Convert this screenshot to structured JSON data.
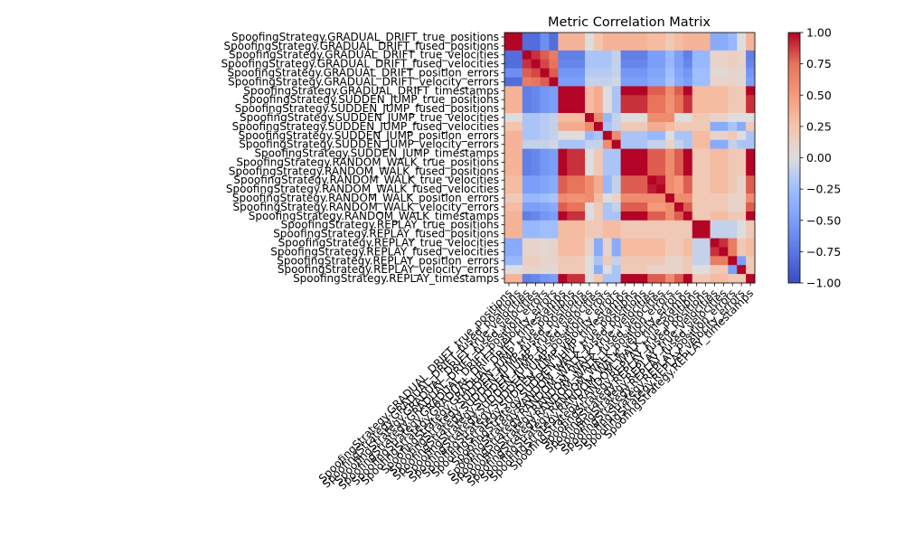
{
  "chart_data": {
    "type": "heatmap",
    "title": "Metric Correlation Matrix",
    "labels": [
      "SpoofingStrategy.GRADUAL_DRIFT_true_positions",
      "SpoofingStrategy.GRADUAL_DRIFT_fused_positions",
      "SpoofingStrategy.GRADUAL_DRIFT_true_velocities",
      "SpoofingStrategy.GRADUAL_DRIFT_fused_velocities",
      "SpoofingStrategy.GRADUAL_DRIFT_position_errors",
      "SpoofingStrategy.GRADUAL_DRIFT_velocity_errors",
      "SpoofingStrategy.GRADUAL_DRIFT_timestamps",
      "SpoofingStrategy.SUDDEN_JUMP_true_positions",
      "SpoofingStrategy.SUDDEN_JUMP_fused_positions",
      "SpoofingStrategy.SUDDEN_JUMP_true_velocities",
      "SpoofingStrategy.SUDDEN_JUMP_fused_velocities",
      "SpoofingStrategy.SUDDEN_JUMP_position_errors",
      "SpoofingStrategy.SUDDEN_JUMP_velocity_errors",
      "SpoofingStrategy.SUDDEN_JUMP_timestamps",
      "SpoofingStrategy.RANDOM_WALK_true_positions",
      "SpoofingStrategy.RANDOM_WALK_fused_positions",
      "SpoofingStrategy.RANDOM_WALK_true_velocities",
      "SpoofingStrategy.RANDOM_WALK_fused_velocities",
      "SpoofingStrategy.RANDOM_WALK_position_errors",
      "SpoofingStrategy.RANDOM_WALK_velocity_errors",
      "SpoofingStrategy.RANDOM_WALK_timestamps",
      "SpoofingStrategy.REPLAY_true_positions",
      "SpoofingStrategy.REPLAY_fused_positions",
      "SpoofingStrategy.REPLAY_true_velocities",
      "SpoofingStrategy.REPLAY_fused_velocities",
      "SpoofingStrategy.REPLAY_position_errors",
      "SpoofingStrategy.REPLAY_velocity_errors",
      "SpoofingStrategy.REPLAY_timestamps"
    ],
    "matrix": [
      [
        1.0,
        1.0,
        -0.8,
        -0.8,
        -0.6,
        -0.8,
        0.35,
        0.35,
        0.35,
        0.0,
        0.25,
        0.35,
        0.35,
        0.35,
        0.35,
        0.35,
        0.3,
        0.3,
        0.2,
        0.3,
        0.35,
        0.35,
        0.35,
        -0.4,
        -0.4,
        -0.3,
        0.0,
        0.35
      ],
      [
        1.0,
        1.0,
        -0.8,
        -0.8,
        -0.6,
        -0.8,
        0.35,
        0.35,
        0.35,
        0.0,
        0.25,
        0.35,
        0.35,
        0.35,
        0.35,
        0.35,
        0.3,
        0.3,
        0.2,
        0.3,
        0.35,
        0.35,
        0.35,
        -0.4,
        -0.4,
        -0.3,
        0.0,
        0.35
      ],
      [
        -0.8,
        -0.8,
        1.0,
        0.9,
        0.8,
        0.7,
        -0.7,
        -0.7,
        -0.7,
        -0.2,
        -0.2,
        -0.2,
        -0.1,
        -0.7,
        -0.7,
        -0.7,
        -0.5,
        -0.5,
        -0.3,
        -0.5,
        -0.7,
        -0.3,
        -0.3,
        0.1,
        0.1,
        0.15,
        0.1,
        -0.7
      ],
      [
        -0.8,
        -0.8,
        0.9,
        1.0,
        0.85,
        0.75,
        -0.65,
        -0.65,
        -0.65,
        -0.2,
        -0.2,
        -0.2,
        -0.1,
        -0.65,
        -0.65,
        -0.65,
        -0.5,
        -0.5,
        -0.3,
        -0.5,
        -0.65,
        -0.3,
        -0.3,
        0.1,
        0.1,
        0.15,
        0.1,
        -0.65
      ],
      [
        -0.6,
        -0.6,
        0.8,
        0.85,
        1.0,
        0.8,
        -0.55,
        -0.55,
        -0.55,
        -0.15,
        -0.15,
        -0.15,
        -0.1,
        -0.55,
        -0.55,
        -0.55,
        -0.45,
        -0.45,
        -0.25,
        -0.45,
        -0.55,
        -0.25,
        -0.25,
        0.05,
        0.05,
        0.1,
        0.05,
        -0.55
      ],
      [
        -0.8,
        -0.8,
        0.7,
        0.75,
        0.8,
        1.0,
        -0.5,
        -0.5,
        -0.5,
        -0.1,
        -0.1,
        -0.1,
        -0.05,
        -0.5,
        -0.5,
        -0.5,
        -0.4,
        -0.4,
        -0.2,
        -0.4,
        -0.5,
        -0.25,
        -0.25,
        0.1,
        0.1,
        0.1,
        0.05,
        -0.5
      ],
      [
        0.35,
        0.35,
        -0.7,
        -0.65,
        -0.55,
        -0.5,
        1.0,
        1.0,
        1.0,
        0.3,
        0.4,
        0.0,
        -0.2,
        1.0,
        1.0,
        1.0,
        0.8,
        0.8,
        0.6,
        0.8,
        1.0,
        0.3,
        0.3,
        0.3,
        0.3,
        0.2,
        0.2,
        1.0
      ],
      [
        0.35,
        0.35,
        -0.7,
        -0.65,
        -0.55,
        -0.5,
        1.0,
        1.0,
        1.0,
        0.3,
        0.4,
        0.0,
        -0.2,
        0.9,
        0.9,
        0.9,
        0.75,
        0.75,
        0.55,
        0.75,
        0.9,
        0.3,
        0.3,
        0.3,
        0.3,
        0.2,
        0.2,
        0.9
      ],
      [
        0.35,
        0.35,
        -0.7,
        -0.65,
        -0.55,
        -0.5,
        1.0,
        1.0,
        1.0,
        0.3,
        0.4,
        0.0,
        -0.2,
        0.9,
        0.9,
        0.9,
        0.75,
        0.75,
        0.55,
        0.75,
        0.9,
        0.3,
        0.3,
        0.3,
        0.3,
        0.2,
        0.2,
        0.9
      ],
      [
        0.0,
        0.0,
        -0.2,
        -0.2,
        -0.15,
        -0.1,
        0.3,
        0.3,
        0.3,
        1.0,
        0.6,
        -0.3,
        -0.1,
        0.0,
        0.0,
        0.0,
        0.6,
        0.6,
        0.6,
        0.0,
        0.0,
        0.2,
        0.2,
        0.1,
        0.1,
        0.0,
        0.0,
        0.0
      ],
      [
        0.25,
        0.25,
        -0.2,
        -0.2,
        -0.15,
        -0.1,
        0.4,
        0.4,
        0.4,
        0.6,
        1.0,
        -0.2,
        -0.1,
        0.2,
        0.2,
        0.2,
        0.4,
        0.4,
        0.3,
        0.2,
        0.2,
        0.2,
        0.2,
        -0.4,
        -0.4,
        -0.2,
        -0.4,
        0.2
      ],
      [
        0.35,
        0.35,
        -0.2,
        -0.2,
        -0.15,
        -0.1,
        0.0,
        0.0,
        0.0,
        -0.3,
        -0.2,
        1.0,
        0.6,
        -0.2,
        -0.2,
        -0.2,
        -0.3,
        -0.3,
        0.0,
        -0.2,
        -0.2,
        0.3,
        0.3,
        0.1,
        0.1,
        0.2,
        0.0,
        -0.2
      ],
      [
        0.35,
        0.35,
        -0.1,
        -0.1,
        -0.1,
        -0.05,
        -0.2,
        -0.2,
        -0.2,
        -0.1,
        -0.1,
        0.6,
        1.0,
        -0.2,
        -0.2,
        -0.2,
        -0.1,
        -0.1,
        0.1,
        -0.1,
        -0.2,
        0.3,
        0.3,
        -0.4,
        -0.4,
        -0.1,
        -0.2,
        -0.2
      ],
      [
        0.35,
        0.35,
        -0.7,
        -0.65,
        -0.55,
        -0.5,
        1.0,
        0.9,
        0.9,
        0.0,
        0.2,
        -0.2,
        -0.2,
        1.0,
        1.0,
        1.0,
        0.8,
        0.8,
        0.6,
        0.8,
        1.0,
        0.2,
        0.2,
        0.3,
        0.3,
        0.2,
        0.2,
        1.0
      ],
      [
        0.35,
        0.35,
        -0.7,
        -0.65,
        -0.55,
        -0.5,
        1.0,
        0.9,
        0.9,
        0.0,
        0.2,
        -0.2,
        -0.2,
        1.0,
        1.0,
        1.0,
        0.8,
        0.8,
        0.6,
        0.8,
        1.0,
        0.2,
        0.2,
        0.3,
        0.3,
        0.2,
        0.2,
        1.0
      ],
      [
        0.35,
        0.35,
        -0.7,
        -0.65,
        -0.55,
        -0.5,
        1.0,
        0.9,
        0.9,
        0.0,
        0.2,
        -0.2,
        -0.2,
        1.0,
        1.0,
        1.0,
        0.8,
        0.8,
        0.6,
        0.8,
        1.0,
        0.2,
        0.2,
        0.3,
        0.3,
        0.2,
        0.2,
        1.0
      ],
      [
        0.3,
        0.3,
        -0.5,
        -0.5,
        -0.45,
        -0.4,
        0.8,
        0.75,
        0.75,
        0.6,
        0.4,
        -0.3,
        -0.1,
        0.8,
        0.8,
        0.8,
        1.0,
        0.95,
        0.6,
        0.5,
        0.8,
        0.2,
        0.2,
        0.3,
        0.3,
        0.2,
        0.1,
        0.8
      ],
      [
        0.3,
        0.3,
        -0.5,
        -0.5,
        -0.45,
        -0.4,
        0.8,
        0.75,
        0.75,
        0.6,
        0.4,
        -0.3,
        -0.1,
        0.8,
        0.8,
        0.8,
        0.95,
        1.0,
        0.6,
        0.5,
        0.8,
        0.2,
        0.2,
        0.3,
        0.3,
        0.2,
        0.1,
        0.8
      ],
      [
        0.2,
        0.2,
        -0.3,
        -0.3,
        -0.25,
        -0.2,
        0.6,
        0.55,
        0.55,
        0.6,
        0.3,
        0.0,
        0.1,
        0.6,
        0.6,
        0.6,
        0.6,
        0.6,
        1.0,
        0.6,
        0.6,
        0.2,
        0.2,
        0.2,
        0.2,
        0.1,
        0.1,
        0.6
      ],
      [
        0.3,
        0.3,
        -0.5,
        -0.5,
        -0.45,
        -0.4,
        0.8,
        0.75,
        0.75,
        0.0,
        0.2,
        -0.2,
        -0.1,
        0.8,
        0.8,
        0.8,
        0.5,
        0.5,
        0.6,
        1.0,
        0.8,
        0.2,
        0.2,
        0.2,
        0.2,
        0.1,
        0.1,
        0.8
      ],
      [
        0.35,
        0.35,
        -0.7,
        -0.65,
        -0.55,
        -0.5,
        1.0,
        0.9,
        0.9,
        0.0,
        0.2,
        -0.2,
        -0.2,
        1.0,
        1.0,
        1.0,
        0.8,
        0.8,
        0.6,
        0.8,
        1.0,
        0.2,
        0.2,
        0.3,
        0.3,
        0.2,
        0.2,
        1.0
      ],
      [
        0.35,
        0.35,
        -0.3,
        -0.3,
        -0.25,
        -0.25,
        0.3,
        0.3,
        0.3,
        0.2,
        0.2,
        0.3,
        0.3,
        0.2,
        0.2,
        0.2,
        0.2,
        0.2,
        0.2,
        0.2,
        0.2,
        1.0,
        1.0,
        -0.1,
        -0.1,
        -0.1,
        0.0,
        0.2
      ],
      [
        0.35,
        0.35,
        -0.3,
        -0.3,
        -0.25,
        -0.25,
        0.3,
        0.3,
        0.3,
        0.2,
        0.2,
        0.3,
        0.3,
        0.2,
        0.2,
        0.2,
        0.2,
        0.2,
        0.2,
        0.2,
        0.2,
        1.0,
        1.0,
        -0.1,
        -0.1,
        -0.1,
        0.0,
        0.2
      ],
      [
        -0.4,
        -0.4,
        0.1,
        0.1,
        0.05,
        0.1,
        0.3,
        0.3,
        0.3,
        0.1,
        -0.4,
        0.1,
        -0.4,
        0.3,
        0.3,
        0.3,
        0.3,
        0.3,
        0.2,
        0.2,
        0.3,
        -0.1,
        -0.1,
        1.0,
        0.9,
        0.7,
        0.2,
        0.3
      ],
      [
        -0.4,
        -0.4,
        0.1,
        0.1,
        0.05,
        0.1,
        0.3,
        0.3,
        0.3,
        0.1,
        -0.4,
        0.1,
        -0.4,
        0.3,
        0.3,
        0.3,
        0.3,
        0.3,
        0.2,
        0.2,
        0.3,
        -0.1,
        -0.1,
        0.9,
        1.0,
        0.7,
        0.2,
        0.3
      ],
      [
        -0.3,
        -0.3,
        0.15,
        0.15,
        0.1,
        0.1,
        0.2,
        0.2,
        0.2,
        0.0,
        -0.2,
        0.2,
        -0.1,
        0.2,
        0.2,
        0.2,
        0.2,
        0.2,
        0.1,
        0.1,
        0.2,
        -0.1,
        -0.1,
        0.7,
        0.7,
        1.0,
        -0.5,
        0.2
      ],
      [
        0.0,
        0.0,
        0.1,
        0.1,
        0.05,
        0.05,
        0.2,
        0.2,
        0.2,
        0.0,
        -0.4,
        0.0,
        -0.2,
        0.2,
        0.2,
        0.2,
        0.1,
        0.1,
        0.1,
        0.1,
        0.2,
        0.0,
        0.0,
        0.2,
        0.2,
        -0.5,
        1.0,
        0.2
      ],
      [
        0.35,
        0.35,
        -0.7,
        -0.65,
        -0.55,
        -0.5,
        1.0,
        0.9,
        0.9,
        0.0,
        0.2,
        -0.2,
        -0.2,
        1.0,
        1.0,
        1.0,
        0.8,
        0.8,
        0.6,
        0.8,
        1.0,
        0.2,
        0.2,
        0.3,
        0.3,
        0.2,
        0.2,
        1.0
      ]
    ],
    "colormap": "coolwarm",
    "colorbar": {
      "range": [
        -1.0,
        1.0
      ],
      "ticks": [
        "1.00",
        "0.75",
        "0.50",
        "0.25",
        "0.00",
        "−0.25",
        "−0.50",
        "−0.75",
        "−1.00"
      ],
      "tick_values": [
        1.0,
        0.75,
        0.5,
        0.25,
        0.0,
        -0.25,
        -0.5,
        -0.75,
        -1.0
      ]
    },
    "colors": {
      "low": "#3b4cc0",
      "mid": "#dddddd",
      "high": "#b40426"
    }
  }
}
